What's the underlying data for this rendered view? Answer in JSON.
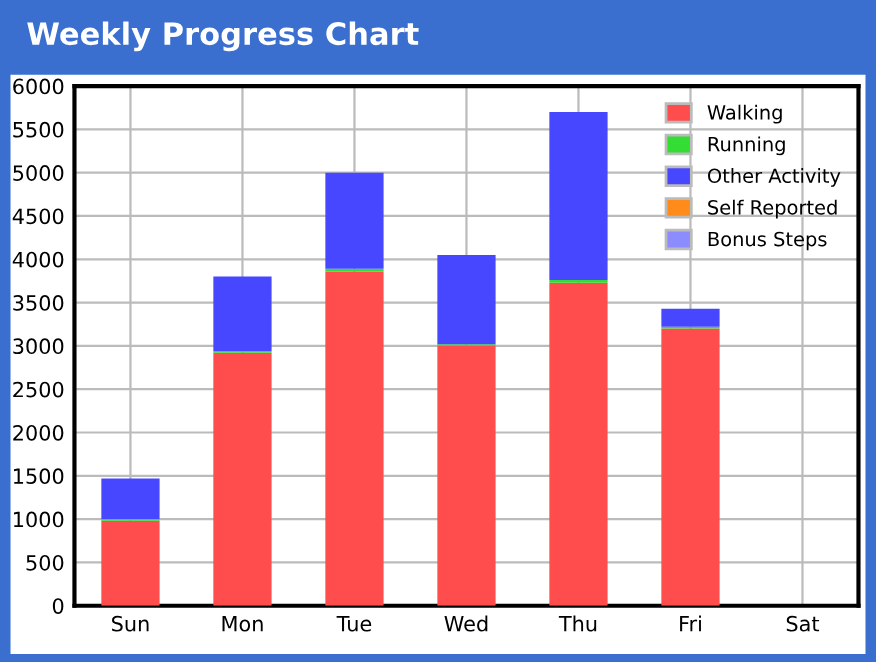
{
  "chart_data": {
    "type": "bar",
    "title": "Weekly Progress Chart",
    "stacked": true,
    "categories": [
      "Sun",
      "Mon",
      "Tue",
      "Wed",
      "Thu",
      "Fri",
      "Sat"
    ],
    "series": [
      {
        "name": "Walking",
        "color": "#ff4d4d",
        "values": [
          980,
          2920,
          3860,
          3000,
          3730,
          3200,
          0
        ]
      },
      {
        "name": "Running",
        "color": "#33dd33",
        "values": [
          20,
          20,
          30,
          20,
          30,
          20,
          0
        ]
      },
      {
        "name": "Other Activity",
        "color": "#4747ff",
        "values": [
          470,
          860,
          1110,
          1030,
          1940,
          210,
          0
        ]
      },
      {
        "name": "Self Reported",
        "color": "#ff8c1a",
        "values": [
          0,
          0,
          0,
          0,
          0,
          0,
          0
        ]
      },
      {
        "name": "Bonus Steps",
        "color": "#8c8cff",
        "values": [
          0,
          0,
          0,
          0,
          0,
          0,
          0
        ]
      }
    ],
    "ylim": [
      0,
      6000
    ],
    "yticks": [
      0,
      500,
      1000,
      1500,
      2000,
      2500,
      3000,
      3500,
      4000,
      4500,
      5000,
      5500,
      6000
    ],
    "grid": true,
    "legend": "top right"
  }
}
